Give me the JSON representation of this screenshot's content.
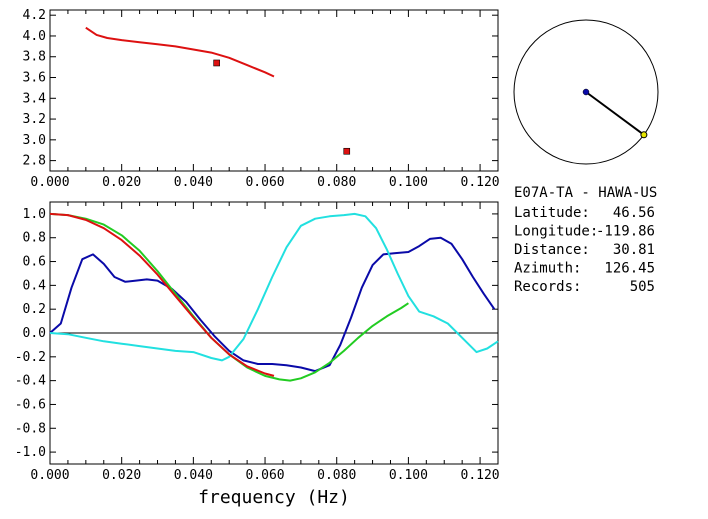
{
  "station": {
    "title": "E07A-TA - HAWA-US",
    "rows": [
      {
        "label": "Latitude:",
        "value": "46.56"
      },
      {
        "label": "Longitude:",
        "value": "-119.86"
      },
      {
        "label": "Distance:",
        "value": "30.81"
      },
      {
        "label": "Azimuth:",
        "value": "126.45"
      },
      {
        "label": "Records:",
        "value": "505"
      }
    ]
  },
  "colors": {
    "red": "#dd1111",
    "blue": "#0a0aa8",
    "green": "#22cc22",
    "cyan": "#22e0e0",
    "zero_line": "#000000",
    "axis": "#000000"
  },
  "chart_data": [
    {
      "type": "line",
      "title": "",
      "xlabel": "",
      "ylabel": "",
      "xlim": [
        0.0,
        0.125
      ],
      "ylim": [
        2.7,
        4.25
      ],
      "xticks": [
        "0.000",
        "0.020",
        "0.040",
        "0.060",
        "0.080",
        "0.100",
        "0.120"
      ],
      "yticks": [
        "2.8",
        "3.0",
        "3.2",
        "3.4",
        "3.6",
        "3.8",
        "4.0",
        "4.2"
      ],
      "series": [
        {
          "color": "red",
          "kind": "line",
          "x": [
            0.01,
            0.013,
            0.016,
            0.02,
            0.025,
            0.03,
            0.035,
            0.04,
            0.045,
            0.05,
            0.055,
            0.06,
            0.0625
          ],
          "y": [
            4.08,
            4.01,
            3.98,
            3.96,
            3.94,
            3.92,
            3.9,
            3.87,
            3.84,
            3.79,
            3.72,
            3.65,
            3.61
          ]
        },
        {
          "color": "red",
          "kind": "markers",
          "x": [
            0.0465,
            0.0828
          ],
          "y": [
            3.74,
            2.89
          ]
        }
      ]
    },
    {
      "type": "line",
      "title": "",
      "xlabel": "frequency (Hz)",
      "ylabel": "",
      "xlim": [
        0.0,
        0.125
      ],
      "ylim": [
        -1.1,
        1.1
      ],
      "xticks": [
        "0.000",
        "0.020",
        "0.040",
        "0.060",
        "0.080",
        "0.100",
        "0.120"
      ],
      "yticks": [
        "1.0",
        "0.8",
        "0.6",
        "0.4",
        "0.2",
        "0.0",
        "-0.2",
        "-0.4",
        "-0.6",
        "-0.8",
        "-1.0"
      ],
      "zero_line": true,
      "series": [
        {
          "color": "blue",
          "x": [
            0.0,
            0.003,
            0.006,
            0.009,
            0.012,
            0.015,
            0.018,
            0.021,
            0.024,
            0.027,
            0.03,
            0.034,
            0.038,
            0.042,
            0.046,
            0.05,
            0.054,
            0.058,
            0.062,
            0.066,
            0.07,
            0.074,
            0.078,
            0.081,
            0.084,
            0.087,
            0.09,
            0.093,
            0.096,
            0.1,
            0.103,
            0.106,
            0.109,
            0.112,
            0.115,
            0.118,
            0.121,
            0.124
          ],
          "y": [
            0.0,
            0.08,
            0.38,
            0.62,
            0.66,
            0.58,
            0.47,
            0.43,
            0.44,
            0.45,
            0.44,
            0.37,
            0.26,
            0.11,
            -0.03,
            -0.15,
            -0.23,
            -0.26,
            -0.26,
            -0.27,
            -0.29,
            -0.32,
            -0.27,
            -0.1,
            0.13,
            0.38,
            0.57,
            0.66,
            0.67,
            0.68,
            0.73,
            0.79,
            0.8,
            0.75,
            0.62,
            0.47,
            0.33,
            0.2
          ]
        },
        {
          "color": "cyan",
          "x": [
            0.0,
            0.005,
            0.01,
            0.015,
            0.02,
            0.025,
            0.03,
            0.035,
            0.04,
            0.045,
            0.048,
            0.05,
            0.054,
            0.058,
            0.062,
            0.066,
            0.07,
            0.074,
            0.078,
            0.082,
            0.085,
            0.088,
            0.091,
            0.094,
            0.097,
            0.1,
            0.103,
            0.107,
            0.111,
            0.115,
            0.119,
            0.122,
            0.125
          ],
          "y": [
            0.0,
            -0.01,
            -0.04,
            -0.07,
            -0.09,
            -0.11,
            -0.13,
            -0.15,
            -0.16,
            -0.21,
            -0.23,
            -0.2,
            -0.05,
            0.2,
            0.47,
            0.72,
            0.9,
            0.96,
            0.98,
            0.99,
            1.0,
            0.98,
            0.88,
            0.7,
            0.5,
            0.31,
            0.18,
            0.14,
            0.08,
            -0.04,
            -0.16,
            -0.13,
            -0.07
          ]
        },
        {
          "color": "green",
          "x": [
            0.0,
            0.005,
            0.01,
            0.015,
            0.02,
            0.025,
            0.03,
            0.035,
            0.04,
            0.045,
            0.05,
            0.055,
            0.06,
            0.064,
            0.067,
            0.07,
            0.074,
            0.078,
            0.082,
            0.086,
            0.09,
            0.094,
            0.098,
            0.1
          ],
          "y": [
            1.0,
            0.99,
            0.96,
            0.91,
            0.82,
            0.69,
            0.52,
            0.33,
            0.14,
            -0.04,
            -0.18,
            -0.29,
            -0.36,
            -0.39,
            -0.4,
            -0.38,
            -0.33,
            -0.25,
            -0.15,
            -0.04,
            0.06,
            0.14,
            0.21,
            0.25
          ]
        },
        {
          "color": "red",
          "x": [
            0.0,
            0.005,
            0.01,
            0.015,
            0.02,
            0.025,
            0.03,
            0.035,
            0.04,
            0.045,
            0.05,
            0.055,
            0.06,
            0.0625
          ],
          "y": [
            1.0,
            0.99,
            0.95,
            0.88,
            0.78,
            0.65,
            0.49,
            0.31,
            0.13,
            -0.04,
            -0.18,
            -0.28,
            -0.34,
            -0.36
          ]
        }
      ]
    },
    {
      "type": "scatter",
      "title": "",
      "xlabel": "",
      "ylabel": "",
      "azimuth_deg": 126.45,
      "series": [
        {
          "color": "blue",
          "label": "",
          "kind": "center"
        },
        {
          "color": "yellow-on-black",
          "label": "",
          "kind": "station"
        }
      ]
    }
  ]
}
